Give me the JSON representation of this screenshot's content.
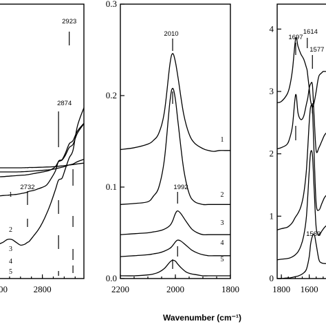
{
  "xlabel": "Wavenumber (cm⁻¹)",
  "chart_data": [
    {
      "type": "line",
      "panel": "left",
      "title": "",
      "xlabel": "",
      "ylabel": "",
      "xlim": [
        2600,
        2990
      ],
      "ylim": [
        0,
        1
      ],
      "x_ticks": [
        "2800",
        "2600"
      ],
      "y_ticks": [],
      "annotations": [
        "2923",
        "2874",
        "2732"
      ],
      "series": [
        {
          "name": "1",
          "x": [
            2990,
            2960,
            2940,
            2923,
            2905,
            2890,
            2874,
            2860,
            2840,
            2820,
            2800,
            2780,
            2760,
            2740,
            2732,
            2720,
            2700,
            2680,
            2660,
            2640,
            2620,
            2600
          ],
          "values": [
            0.96,
            0.86,
            0.73,
            0.69,
            0.63,
            0.58,
            0.57,
            0.52,
            0.45,
            0.39,
            0.34,
            0.3,
            0.27,
            0.24,
            0.235,
            0.225,
            0.22,
            0.235,
            0.25,
            0.25,
            0.235,
            0.225
          ]
        },
        {
          "name": "2",
          "x": [
            2990,
            2960,
            2940,
            2923,
            2905,
            2890,
            2874,
            2860,
            2840,
            2820,
            2800,
            2780,
            2760,
            2740,
            2732,
            2720,
            2700,
            2680,
            2660,
            2640,
            2620,
            2600
          ],
          "values": [
            0.57,
            0.52,
            0.46,
            0.44,
            0.38,
            0.34,
            0.33,
            0.27,
            0.22,
            0.18,
            0.165,
            0.155,
            0.145,
            0.14,
            0.135,
            0.13,
            0.125,
            0.12,
            0.118,
            0.115,
            0.113,
            0.11
          ]
        },
        {
          "name": "3",
          "x": [
            2990,
            2960,
            2940,
            2923,
            2905,
            2890,
            2874,
            2860,
            2840,
            2820,
            2800,
            2780,
            2760,
            2740,
            2732,
            2720,
            2700,
            2680,
            2660,
            2640,
            2620,
            2600
          ],
          "values": [
            0.42,
            0.36,
            0.29,
            0.27,
            0.22,
            0.19,
            0.18,
            0.15,
            0.13,
            0.12,
            0.115,
            0.11,
            0.105,
            0.1,
            0.098,
            0.096,
            0.094,
            0.092,
            0.09,
            0.088,
            0.086,
            0.085
          ]
        },
        {
          "name": "4",
          "x": [
            2990,
            2960,
            2940,
            2923,
            2905,
            2890,
            2874,
            2860,
            2840,
            2820,
            2800,
            2780,
            2760,
            2740,
            2732,
            2720,
            2700,
            2680,
            2660,
            2640,
            2620,
            2600
          ],
          "values": [
            0.13,
            0.115,
            0.1,
            0.095,
            0.085,
            0.08,
            0.075,
            0.07,
            0.065,
            0.062,
            0.06,
            0.058,
            0.056,
            0.054,
            0.053,
            0.052,
            0.051,
            0.05,
            0.05,
            0.05,
            0.05,
            0.05
          ]
        },
        {
          "name": "5",
          "x": [
            2990,
            2960,
            2940,
            2923,
            2905,
            2890,
            2874,
            2860,
            2840,
            2820,
            2800,
            2780,
            2760,
            2740,
            2732,
            2720,
            2700,
            2680,
            2660,
            2640,
            2620,
            2600
          ],
          "values": [
            0.04,
            0.035,
            0.03,
            0.028,
            0.025,
            0.022,
            0.02,
            0.018,
            0.016,
            0.015,
            0.014,
            0.013,
            0.012,
            0.012,
            0.011,
            0.011,
            0.01,
            0.01,
            0.01,
            0.01,
            0.01,
            0.01
          ]
        }
      ]
    },
    {
      "type": "line",
      "panel": "middle",
      "title": "",
      "xlabel": "Wavenumber (cm⁻¹)",
      "ylabel": "",
      "xlim": [
        2200,
        1800
      ],
      "ylim": [
        0,
        0.3
      ],
      "x_ticks": [
        "2200",
        "2000",
        "1800"
      ],
      "y_ticks": [
        "0.0",
        "0.1",
        "0.2",
        "0.3"
      ],
      "annotations": [
        "2010",
        "1992"
      ],
      "series": [
        {
          "name": "1",
          "x": [
            2200,
            2150,
            2100,
            2080,
            2060,
            2040,
            2020,
            2010,
            2000,
            1990,
            1970,
            1950,
            1930,
            1900,
            1880,
            1860,
            1840,
            1820,
            1800
          ],
          "values": [
            0.141,
            0.143,
            0.147,
            0.151,
            0.159,
            0.182,
            0.234,
            0.246,
            0.237,
            0.219,
            0.18,
            0.158,
            0.148,
            0.142,
            0.14,
            0.139,
            0.14,
            0.14,
            0.14
          ]
        },
        {
          "name": "2",
          "x": [
            2200,
            2150,
            2100,
            2080,
            2060,
            2040,
            2020,
            2010,
            2000,
            1990,
            1970,
            1950,
            1930,
            1900,
            1880,
            1860,
            1840,
            1820,
            1800
          ],
          "values": [
            0.081,
            0.082,
            0.084,
            0.09,
            0.1,
            0.13,
            0.193,
            0.208,
            0.196,
            0.17,
            0.12,
            0.093,
            0.084,
            0.081,
            0.081,
            0.081,
            0.081,
            0.081,
            0.081
          ]
        },
        {
          "name": "3",
          "x": [
            2200,
            2150,
            2100,
            2080,
            2060,
            2040,
            2020,
            2010,
            2000,
            1992,
            1980,
            1960,
            1940,
            1920,
            1900,
            1880,
            1860,
            1840,
            1820,
            1800
          ],
          "values": [
            0.048,
            0.049,
            0.05,
            0.051,
            0.052,
            0.054,
            0.058,
            0.063,
            0.071,
            0.074,
            0.071,
            0.062,
            0.054,
            0.05,
            0.048,
            0.048,
            0.048,
            0.048,
            0.048,
            0.048
          ]
        },
        {
          "name": "4",
          "x": [
            2200,
            2150,
            2100,
            2080,
            2060,
            2040,
            2020,
            2010,
            2000,
            1992,
            1980,
            1960,
            1940,
            1920,
            1900,
            1880,
            1860,
            1840,
            1820,
            1800
          ],
          "values": [
            0.024,
            0.025,
            0.026,
            0.027,
            0.028,
            0.03,
            0.033,
            0.036,
            0.04,
            0.042,
            0.041,
            0.036,
            0.031,
            0.028,
            0.026,
            0.025,
            0.025,
            0.025,
            0.025,
            0.025
          ]
        },
        {
          "name": "5",
          "x": [
            2200,
            2150,
            2100,
            2080,
            2060,
            2040,
            2020,
            2010,
            2000,
            1992,
            1980,
            1960,
            1940,
            1920,
            1900,
            1880,
            1860,
            1840,
            1820,
            1800
          ],
          "values": [
            0.003,
            0.003,
            0.004,
            0.005,
            0.007,
            0.011,
            0.018,
            0.02,
            0.019,
            0.016,
            0.012,
            0.007,
            0.005,
            0.004,
            0.003,
            0.003,
            0.003,
            0.003,
            0.003,
            0.003
          ]
        }
      ]
    },
    {
      "type": "line",
      "panel": "right",
      "title": "",
      "xlabel": "",
      "ylabel": "",
      "xlim": [
        1830,
        1450
      ],
      "ylim": [
        0,
        4.4
      ],
      "x_ticks": [
        "1800",
        "1600"
      ],
      "y_ticks": [
        "0",
        "1",
        "2",
        "3",
        "4"
      ],
      "annotations": [
        "1697",
        "1614",
        "1577",
        "1563"
      ],
      "series": [
        {
          "name": "1",
          "x": [
            1830,
            1800,
            1760,
            1740,
            1720,
            1697,
            1680,
            1660,
            1640,
            1620,
            1614,
            1600,
            1590,
            1577,
            1565,
            1550,
            1540,
            1530,
            1520,
            1510,
            1500,
            1490,
            1470,
            1450
          ],
          "values": [
            2.82,
            2.84,
            2.95,
            3.08,
            3.35,
            3.85,
            3.72,
            3.6,
            3.52,
            3.38,
            3.32,
            3.05,
            2.85,
            2.75,
            2.82,
            3.0,
            3.15,
            3.25,
            3.28,
            3.3,
            3.32,
            3.32,
            3.32,
            3.32
          ]
        },
        {
          "name": "2",
          "x": [
            1830,
            1800,
            1760,
            1740,
            1720,
            1697,
            1680,
            1660,
            1640,
            1620,
            1610,
            1600,
            1590,
            1577,
            1565,
            1550,
            1530,
            1510,
            1490,
            1470,
            1450
          ],
          "values": [
            2.08,
            2.1,
            2.15,
            2.25,
            2.45,
            2.95,
            2.65,
            2.55,
            2.6,
            2.8,
            2.9,
            3.05,
            3.12,
            3.1,
            2.6,
            2.05,
            2.1,
            2.2,
            2.3,
            2.35,
            2.38
          ]
        },
        {
          "name": "3",
          "x": [
            1830,
            1800,
            1760,
            1740,
            1720,
            1700,
            1680,
            1660,
            1640,
            1620,
            1600,
            1590,
            1577,
            1565,
            1550,
            1530,
            1510,
            1490,
            1470,
            1450
          ],
          "values": [
            0.78,
            0.8,
            0.82,
            0.85,
            0.9,
            0.98,
            1.05,
            1.15,
            1.35,
            1.75,
            2.5,
            2.75,
            2.7,
            2.0,
            1.2,
            1.1,
            1.2,
            1.3,
            1.35,
            1.38
          ]
        },
        {
          "name": "4",
          "x": [
            1830,
            1800,
            1760,
            1740,
            1720,
            1700,
            1680,
            1660,
            1640,
            1620,
            1600,
            1590,
            1577,
            1565,
            1550,
            1530,
            1510,
            1490,
            1470,
            1450
          ],
          "values": [
            0.3,
            0.31,
            0.32,
            0.33,
            0.35,
            0.38,
            0.43,
            0.52,
            0.68,
            1.0,
            1.72,
            2.02,
            1.98,
            1.45,
            0.82,
            0.7,
            0.76,
            0.82,
            0.86,
            0.88
          ]
        },
        {
          "name": "5",
          "x": [
            1830,
            1800,
            1760,
            1740,
            1720,
            1700,
            1680,
            1660,
            1640,
            1620,
            1600,
            1590,
            1577,
            1563,
            1550,
            1530,
            1510,
            1490,
            1470,
            1450
          ],
          "values": [
            0.0,
            0.0,
            0.01,
            0.01,
            0.02,
            0.03,
            0.04,
            0.06,
            0.09,
            0.15,
            0.35,
            0.55,
            0.68,
            0.7,
            0.55,
            0.3,
            0.25,
            0.24,
            0.24,
            0.24
          ]
        }
      ]
    }
  ]
}
